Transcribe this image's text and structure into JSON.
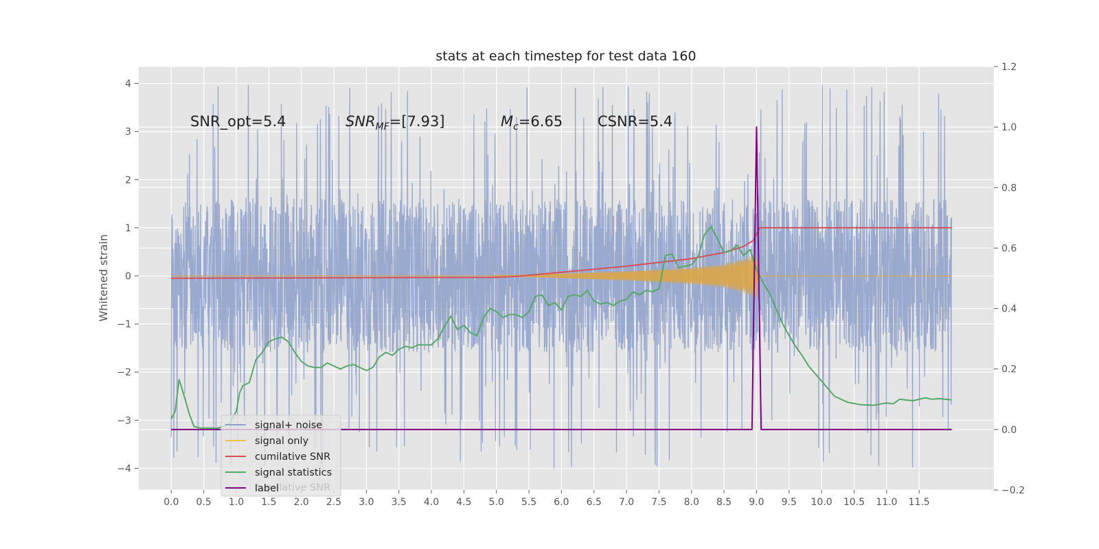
{
  "chart_data": {
    "type": "line",
    "title": "stats at each timestep for test data 160",
    "ylabel": "Whitened strain",
    "xlabel": "",
    "xlim": [
      -0.5,
      12.65
    ],
    "ylim": [
      -4.45,
      4.35
    ],
    "y2lim": [
      -0.2,
      1.2
    ],
    "x_ticks": [
      0.0,
      0.5,
      1.0,
      1.5,
      2.0,
      2.5,
      3.0,
      3.5,
      4.0,
      4.5,
      5.0,
      5.5,
      6.0,
      6.5,
      7.0,
      7.5,
      8.0,
      8.5,
      9.0,
      9.5,
      10.0,
      10.5,
      11.0,
      11.5
    ],
    "x_tick_labels": [
      "0.0",
      "0.5",
      "1.0",
      "1.5",
      "2.0",
      "2.5",
      "3.0",
      "3.5",
      "4.0",
      "4.5",
      "5.0",
      "5.5",
      "6.0",
      "6.5",
      "7.0",
      "7.5",
      "8.0",
      "8.5",
      "9.0",
      "9.5",
      "10.0",
      "10.5",
      "11.0",
      "11.5"
    ],
    "y_ticks": [
      -4,
      -3,
      -2,
      -1,
      0,
      1,
      2,
      3,
      4
    ],
    "y_tick_labels": [
      "−4",
      "−3",
      "−2",
      "−1",
      "0",
      "1",
      "2",
      "3",
      "4"
    ],
    "y2_ticks": [
      -0.2,
      0.0,
      0.2,
      0.4,
      0.6,
      0.8,
      1.0,
      1.2
    ],
    "y2_tick_labels": [
      "−0.2",
      "0.0",
      "0.2",
      "0.4",
      "0.6",
      "0.8",
      "1.0",
      "1.2"
    ],
    "grid": true,
    "legend_position": "lower-left",
    "annotations": {
      "snr_opt": "SNR_opt=5.4",
      "snr_mf_main": "SNR",
      "snr_mf_sub": "MF",
      "snr_mf_value": "=[7.93]",
      "mc_main": "M",
      "mc_sub": "c",
      "mc_value": "=6.65",
      "csnr": "CSNR=5.4"
    },
    "legend_ghost": "cumilative SNR",
    "series": [
      {
        "name": "signal+ noise",
        "color": "#8da0cb",
        "axis": "left",
        "kind": "noise",
        "x_range": [
          0.0,
          12.0
        ],
        "band": [
          -1.6,
          1.6
        ],
        "extremes": [
          -4.05,
          4.0
        ]
      },
      {
        "name": "signal only",
        "color": "#f0c04a",
        "axis": "left",
        "kind": "chirp",
        "x_range": [
          0.0,
          12.0
        ],
        "envelope": {
          "x": [
            0.0,
            4.9,
            6.0,
            7.0,
            8.0,
            8.5,
            8.8,
            9.0,
            9.02,
            12.0
          ],
          "amp": [
            0.0,
            0.0,
            0.05,
            0.1,
            0.17,
            0.24,
            0.35,
            0.45,
            0.0,
            0.0
          ]
        }
      },
      {
        "name": "cumilative SNR",
        "color": "#d6505a",
        "axis": "right",
        "x": [
          0.0,
          4.95,
          5.3,
          6.0,
          7.0,
          8.0,
          8.5,
          8.8,
          8.95,
          9.05,
          12.0
        ],
        "y": [
          0.5,
          0.503,
          0.506,
          0.52,
          0.54,
          0.565,
          0.585,
          0.605,
          0.625,
          0.667,
          0.667
        ]
      },
      {
        "name": "signal statistics",
        "color": "#55a868",
        "axis": "right",
        "x": [
          0.0,
          0.06,
          0.12,
          0.2,
          0.28,
          0.35,
          0.45,
          0.6,
          0.7,
          0.8,
          0.9,
          1.0,
          1.05,
          1.1,
          1.2,
          1.3,
          1.4,
          1.5,
          1.6,
          1.7,
          1.8,
          1.9,
          2.0,
          2.1,
          2.2,
          2.3,
          2.4,
          2.5,
          2.6,
          2.7,
          2.8,
          2.9,
          3.0,
          3.1,
          3.2,
          3.3,
          3.4,
          3.5,
          3.6,
          3.7,
          3.8,
          3.9,
          4.0,
          4.1,
          4.2,
          4.3,
          4.4,
          4.5,
          4.6,
          4.7,
          4.8,
          4.9,
          5.0,
          5.1,
          5.2,
          5.3,
          5.4,
          5.5,
          5.6,
          5.7,
          5.8,
          5.9,
          6.0,
          6.1,
          6.2,
          6.3,
          6.4,
          6.5,
          6.6,
          6.7,
          6.8,
          6.9,
          7.0,
          7.1,
          7.2,
          7.3,
          7.4,
          7.5,
          7.6,
          7.7,
          7.8,
          7.9,
          8.0,
          8.1,
          8.2,
          8.3,
          8.4,
          8.5,
          8.6,
          8.7,
          8.8,
          8.9,
          9.0,
          9.1,
          9.2,
          9.3,
          9.4,
          9.5,
          9.6,
          9.7,
          9.8,
          9.9,
          10.0,
          10.1,
          10.2,
          10.4,
          10.6,
          10.8,
          11.0,
          11.1,
          11.2,
          11.4,
          11.6,
          11.7,
          11.8,
          11.9,
          12.0
        ],
        "y": [
          0.035,
          0.06,
          0.165,
          0.11,
          0.05,
          0.01,
          0.005,
          0.005,
          0.004,
          0.01,
          0.02,
          0.06,
          0.12,
          0.145,
          0.155,
          0.23,
          0.255,
          0.29,
          0.3,
          0.305,
          0.29,
          0.255,
          0.225,
          0.21,
          0.205,
          0.205,
          0.22,
          0.21,
          0.2,
          0.21,
          0.215,
          0.205,
          0.195,
          0.205,
          0.24,
          0.255,
          0.245,
          0.265,
          0.275,
          0.27,
          0.28,
          0.28,
          0.28,
          0.3,
          0.34,
          0.375,
          0.33,
          0.345,
          0.32,
          0.31,
          0.37,
          0.4,
          0.39,
          0.37,
          0.38,
          0.38,
          0.37,
          0.39,
          0.44,
          0.445,
          0.41,
          0.42,
          0.395,
          0.44,
          0.445,
          0.44,
          0.46,
          0.425,
          0.415,
          0.42,
          0.41,
          0.425,
          0.43,
          0.455,
          0.445,
          0.46,
          0.455,
          0.465,
          0.575,
          0.58,
          0.535,
          0.54,
          0.545,
          0.57,
          0.645,
          0.67,
          0.63,
          0.585,
          0.59,
          0.61,
          0.575,
          0.595,
          0.53,
          0.485,
          0.45,
          0.4,
          0.35,
          0.31,
          0.275,
          0.245,
          0.21,
          0.185,
          0.16,
          0.135,
          0.11,
          0.09,
          0.082,
          0.08,
          0.088,
          0.085,
          0.1,
          0.095,
          0.105,
          0.1,
          0.102,
          0.1,
          0.098
        ]
      },
      {
        "name": "label",
        "color": "#800080",
        "axis": "right",
        "x": [
          0.0,
          8.93,
          9.0,
          9.07,
          12.0
        ],
        "y": [
          0.0,
          0.0,
          1.0,
          0.0,
          0.0
        ]
      }
    ]
  }
}
